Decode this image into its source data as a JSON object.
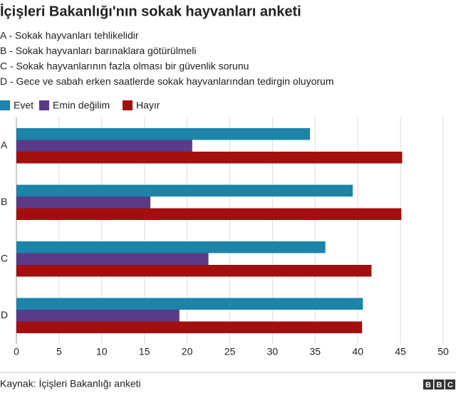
{
  "chart_data": {
    "type": "bar",
    "orientation": "horizontal",
    "title": "İçişleri Bakanlığı'nın sokak hayvanları anketi",
    "subtitle_lines": [
      "A - Sokak hayvanları tehlikelidir",
      "B - Sokak hayvanları barınaklara götürülmeli",
      "C - Sokak hayvanlarının fazla olması bir güvenlik sorunu",
      "D - Gece ve sabah erken saatlerde sokak hayvanlarından tedirgin oluyorum"
    ],
    "categories": [
      "A",
      "B",
      "C",
      "D"
    ],
    "series": [
      {
        "name": "Evet",
        "color": "#1b84a8",
        "values": [
          34.4,
          39.4,
          36.2,
          40.6
        ]
      },
      {
        "name": "Emin değilim",
        "color": "#5b3a87",
        "values": [
          20.6,
          15.7,
          22.5,
          19.1
        ]
      },
      {
        "name": "Hayır",
        "color": "#a30f0f",
        "values": [
          45.2,
          45.1,
          41.6,
          40.5
        ]
      }
    ],
    "xlim": [
      0,
      50
    ],
    "xticks": [
      0,
      5,
      10,
      15,
      20,
      25,
      30,
      35,
      40,
      45,
      50
    ],
    "grid": true,
    "source": "Kaynak: İçişleri Bakanlığı anketi",
    "logo": [
      "B",
      "B",
      "C"
    ]
  }
}
